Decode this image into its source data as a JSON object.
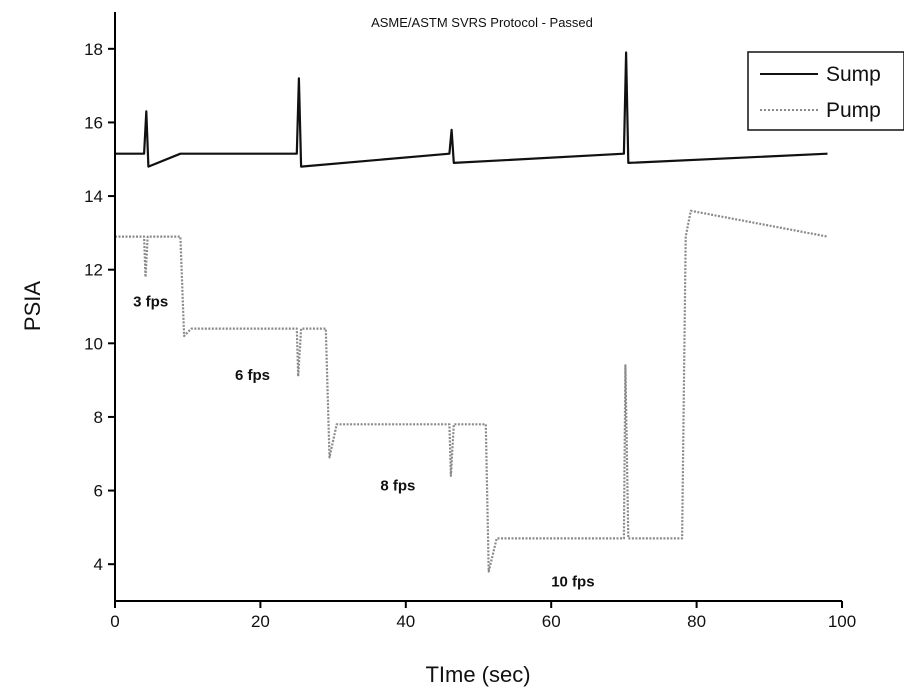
{
  "chart_data": {
    "type": "line",
    "title": "ASME/ASTM SVRS Protocol - Passed",
    "xlabel": "TIme (sec)",
    "ylabel": "PSIA",
    "xlim": [
      0,
      100
    ],
    "ylim": [
      3,
      19
    ],
    "xticks": [
      0,
      20,
      40,
      60,
      80,
      100
    ],
    "yticks": [
      4,
      6,
      8,
      10,
      12,
      14,
      16,
      18
    ],
    "grid": false,
    "legend_position": "top-right",
    "colors": {
      "sump": "#111111",
      "pump": "#8a8a8a",
      "axis": "#000000"
    },
    "series": [
      {
        "name": "Sump",
        "style": "solid",
        "x": [
          0,
          4.0,
          4.3,
          4.6,
          9,
          25.0,
          25.3,
          25.6,
          46.0,
          46.3,
          46.6,
          70.0,
          70.3,
          70.6,
          98
        ],
        "y": [
          15.15,
          15.15,
          16.3,
          14.8,
          15.15,
          15.15,
          17.2,
          14.8,
          15.15,
          15.8,
          14.9,
          15.15,
          17.9,
          14.9,
          15.15
        ]
      },
      {
        "name": "Pump",
        "style": "dotted",
        "x": [
          0,
          4.0,
          4.2,
          4.5,
          9.0,
          9.5,
          10.5,
          25.0,
          25.2,
          25.6,
          29.0,
          29.5,
          30.5,
          46.0,
          46.2,
          46.6,
          51.0,
          51.4,
          52.5,
          70.0,
          70.2,
          70.6,
          78.0,
          78.5,
          79.2,
          98
        ],
        "y": [
          12.9,
          12.9,
          11.8,
          12.9,
          12.9,
          10.2,
          10.4,
          10.4,
          9.1,
          10.4,
          10.4,
          6.9,
          7.8,
          7.8,
          6.4,
          7.8,
          7.8,
          3.8,
          4.7,
          4.7,
          9.4,
          4.7,
          4.7,
          12.9,
          13.6,
          12.9
        ]
      }
    ],
    "annotations": [
      {
        "text": "3 fps",
        "x": 2.5,
        "y": 11.0
      },
      {
        "text": "6 fps",
        "x": 16.5,
        "y": 9.0
      },
      {
        "text": "8 fps",
        "x": 36.5,
        "y": 6.0
      },
      {
        "text": "10 fps",
        "x": 60.0,
        "y": 3.4
      }
    ]
  }
}
